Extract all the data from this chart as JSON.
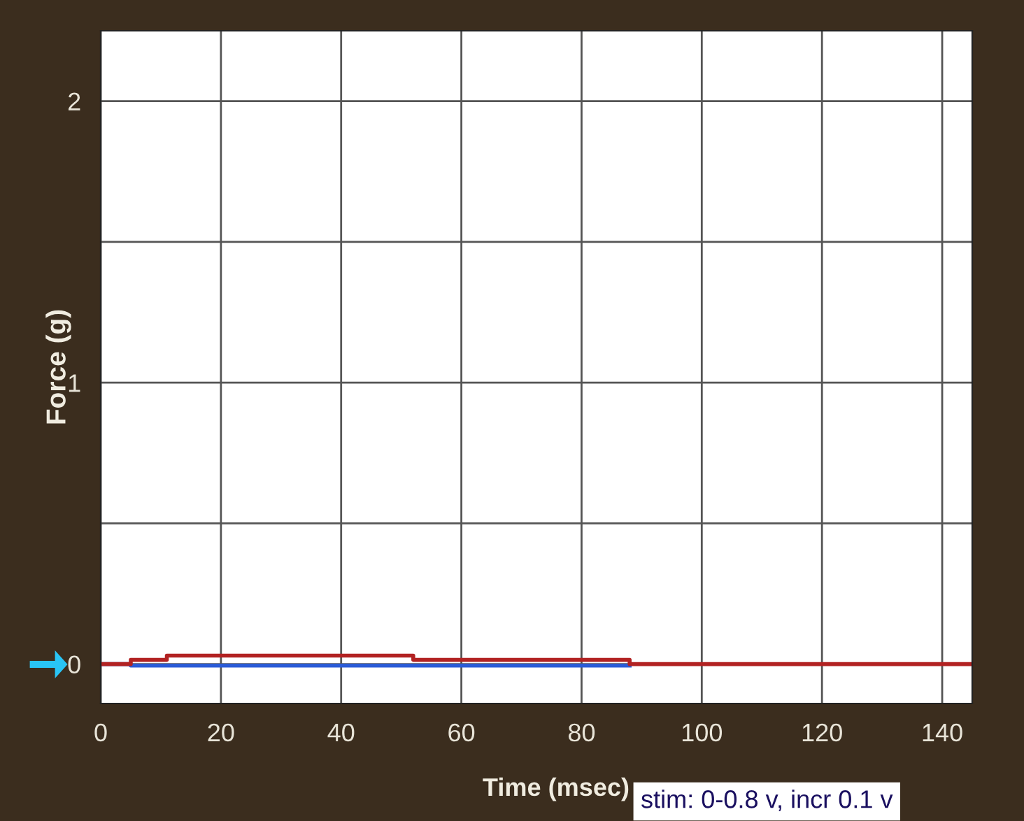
{
  "chart_data": {
    "type": "step",
    "xlabel": "Time (msec)",
    "ylabel": "Force (g)",
    "series": [
      {
        "color": "#2a5bd7",
        "x": [
          0,
          5,
          88
        ],
        "values": [
          0,
          -0.005,
          -0.005
        ]
      },
      {
        "color": "#b22222",
        "x": [
          0,
          5,
          11,
          52,
          88,
          145
        ],
        "values": [
          0,
          0.015,
          0.03,
          0.015,
          0,
          0
        ]
      }
    ],
    "xlim": [
      0,
      145
    ],
    "xticks": [
      0,
      20,
      40,
      60,
      80,
      100,
      120,
      140
    ],
    "ylim": [
      -0.14,
      2.25
    ],
    "yticks": [
      0,
      {
        "value": 0.5,
        "label": null
      },
      1,
      {
        "value": 1.5,
        "label": null
      },
      2
    ],
    "grid": true,
    "line_style": "solid",
    "marker": "none",
    "annotations": [
      "stim: 0-0.8 v, incr 0.1 v"
    ]
  }
}
